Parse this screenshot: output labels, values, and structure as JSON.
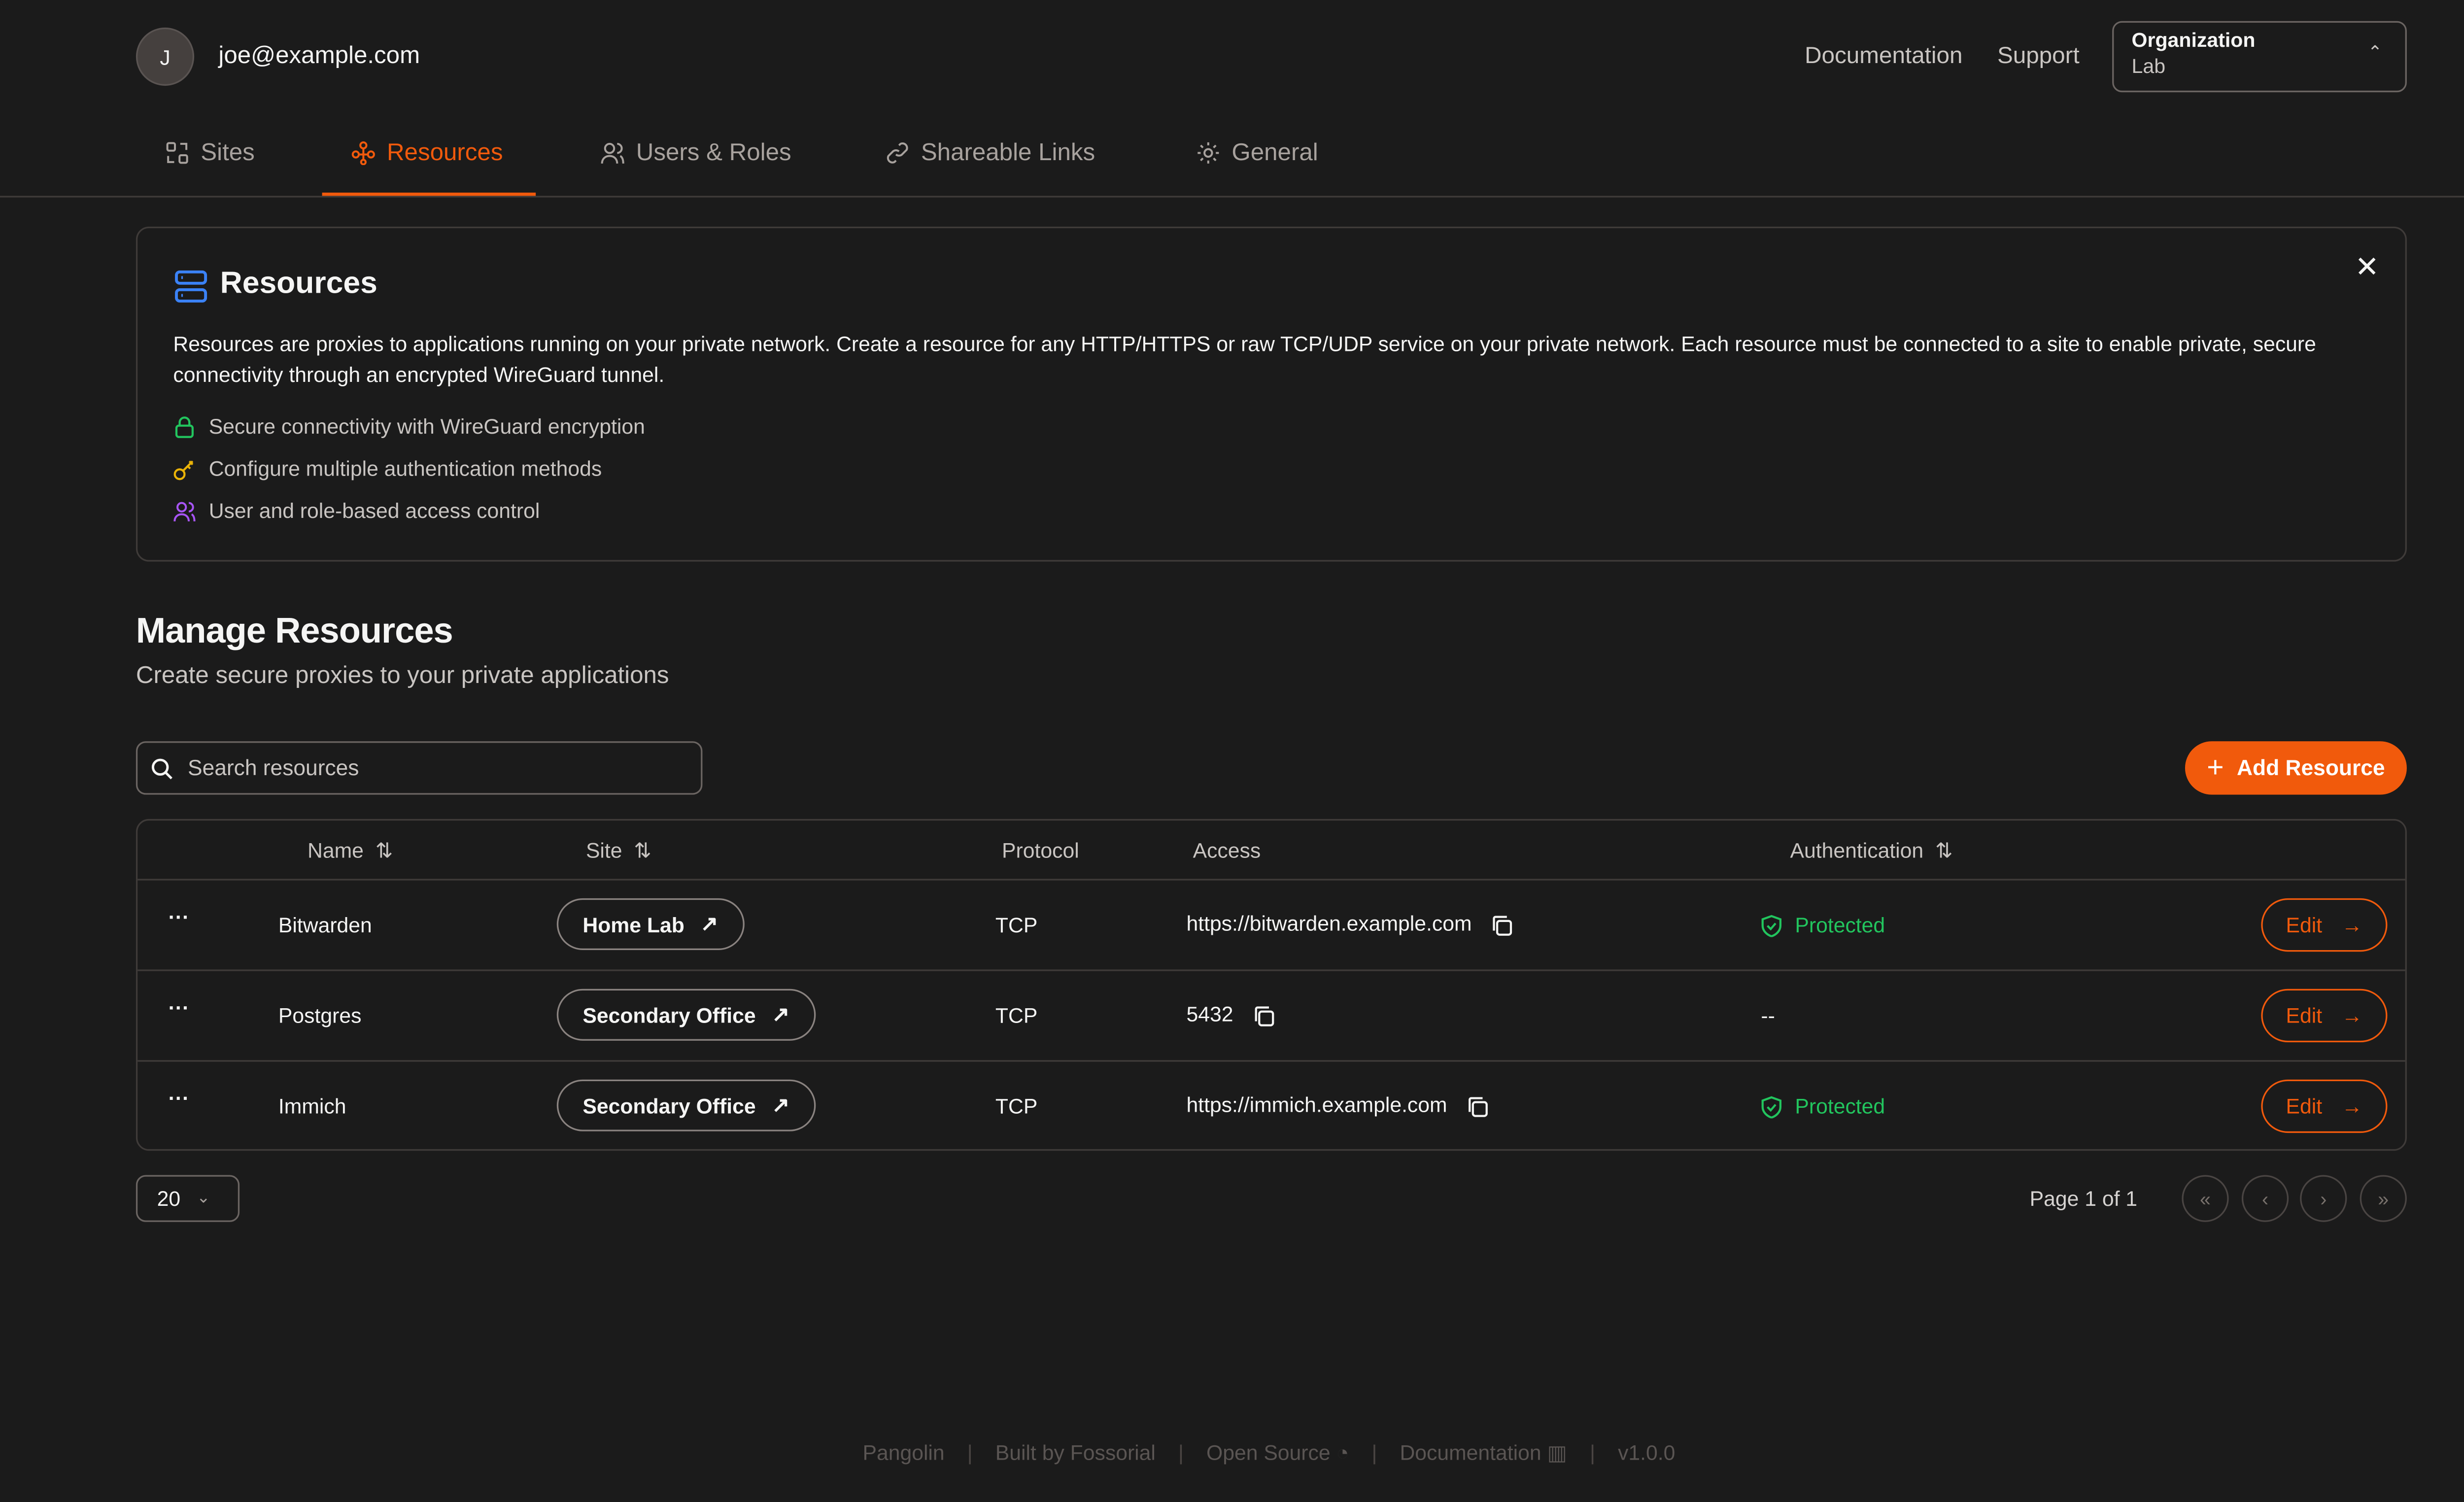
{
  "user": {
    "initial": "J",
    "email": "joe@example.com"
  },
  "header": {
    "links": [
      "Documentation",
      "Support"
    ],
    "org": {
      "label": "Organization",
      "value": "Lab"
    }
  },
  "tabs": [
    {
      "label": "Sites",
      "icon": "sites-icon"
    },
    {
      "label": "Resources",
      "icon": "resources-icon",
      "active": true
    },
    {
      "label": "Users & Roles",
      "icon": "users-icon"
    },
    {
      "label": "Shareable Links",
      "icon": "link-icon"
    },
    {
      "label": "General",
      "icon": "gear-icon"
    }
  ],
  "info": {
    "title": "Resources",
    "description": "Resources are proxies to applications running on your private network. Create a resource for any HTTP/HTTPS or raw TCP/UDP service on your private network. Each resource must be connected to a site to enable private, secure connectivity through an encrypted WireGuard tunnel.",
    "features": [
      "Secure connectivity with WireGuard encryption",
      "Configure multiple authentication methods",
      "User and role-based access control"
    ]
  },
  "main": {
    "title": "Manage Resources",
    "subtitle": "Create secure proxies to your private applications",
    "search_placeholder": "Search resources",
    "add_label": "Add Resource"
  },
  "table": {
    "headers": [
      "Name",
      "Site",
      "Protocol",
      "Access",
      "Authentication"
    ],
    "rows": [
      {
        "name": "Bitwarden",
        "site": "Home Lab",
        "protocol": "TCP",
        "access": "https://bitwarden.example.com",
        "auth": "Protected",
        "edit": "Edit"
      },
      {
        "name": "Postgres",
        "site": "Secondary Office",
        "protocol": "TCP",
        "access": "5432",
        "auth": "--",
        "edit": "Edit"
      },
      {
        "name": "Immich",
        "site": "Secondary Office",
        "protocol": "TCP",
        "access": "https://immich.example.com",
        "auth": "Protected",
        "edit": "Edit"
      }
    ]
  },
  "pagination": {
    "page_size": "20",
    "page_info": "Page 1 of 1"
  },
  "footer": {
    "items": [
      "Pangolin",
      "Built by Fossorial",
      "Open Source",
      "Documentation",
      "v1.0.0"
    ]
  },
  "colors": {
    "accent": "#f15a0c",
    "success": "#22c55e",
    "background": "#1b1b1b"
  }
}
